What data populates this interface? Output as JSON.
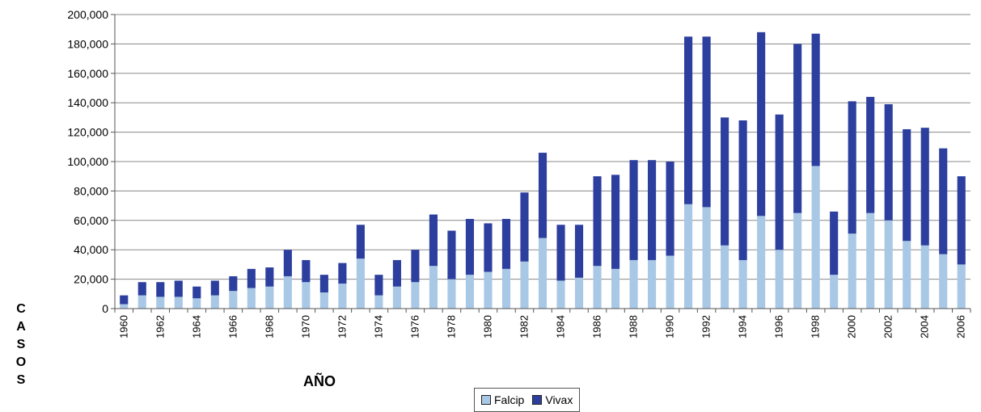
{
  "chart_data": {
    "type": "bar",
    "stacked": true,
    "title": "",
    "xlabel": "AÑO",
    "ylabel": "CASOS",
    "ylim": [
      0,
      200000
    ],
    "yticks": [
      "0",
      "20,000",
      "40,000",
      "60,000",
      "80,000",
      "100,000",
      "120,000",
      "140,000",
      "160,000",
      "180,000",
      "200,000"
    ],
    "grid": true,
    "legend_position": "bottom",
    "categories": [
      "1960",
      "1961",
      "1962",
      "1963",
      "1964",
      "1965",
      "1966",
      "1967",
      "1968",
      "1969",
      "1970",
      "1971",
      "1972",
      "1973",
      "1974",
      "1975",
      "1976",
      "1977",
      "1978",
      "1979",
      "1980",
      "1981",
      "1982",
      "1983",
      "1984",
      "1985",
      "1986",
      "1987",
      "1988",
      "1989",
      "1990",
      "1991",
      "1992",
      "1993",
      "1994",
      "1995",
      "1996",
      "1997",
      "1998",
      "1999",
      "2000",
      "2001",
      "2002",
      "2003",
      "2004",
      "2005",
      "2006"
    ],
    "x_tick_labels": [
      "1960",
      "",
      "1962",
      "",
      "1964",
      "",
      "1966",
      "",
      "1968",
      "",
      "1970",
      "",
      "1972",
      "",
      "1974",
      "",
      "1976",
      "",
      "1978",
      "",
      "1980",
      "",
      "1982",
      "",
      "1984",
      "",
      "1986",
      "",
      "1988",
      "",
      "1990",
      "",
      "1992",
      "",
      "1994",
      "",
      "1996",
      "",
      "1998",
      "",
      "2000",
      "",
      "2002",
      "",
      "2004",
      "",
      "2006"
    ],
    "series": [
      {
        "name": "Falcip",
        "color": "#a9c8e6",
        "values": [
          3000,
          9000,
          8000,
          8000,
          7000,
          9000,
          12000,
          14000,
          15000,
          22000,
          18000,
          11000,
          17000,
          34000,
          9000,
          15000,
          18000,
          29000,
          20000,
          23000,
          25000,
          27000,
          32000,
          48000,
          19000,
          21000,
          29000,
          27000,
          33000,
          33000,
          36000,
          71000,
          69000,
          43000,
          33000,
          63000,
          40000,
          65000,
          97000,
          23000,
          51000,
          65000,
          60000,
          46000,
          43000,
          37000,
          30000
        ]
      },
      {
        "name": "Vivax",
        "color": "#2d3f9e",
        "values": [
          6000,
          9000,
          10000,
          11000,
          8000,
          10000,
          10000,
          13000,
          13000,
          18000,
          15000,
          12000,
          14000,
          23000,
          14000,
          18000,
          22000,
          35000,
          33000,
          38000,
          33000,
          34000,
          47000,
          58000,
          38000,
          36000,
          61000,
          64000,
          68000,
          68000,
          64000,
          114000,
          116000,
          87000,
          95000,
          125000,
          92000,
          115000,
          90000,
          43000,
          90000,
          79000,
          79000,
          76000,
          80000,
          72000,
          60000
        ]
      }
    ]
  }
}
